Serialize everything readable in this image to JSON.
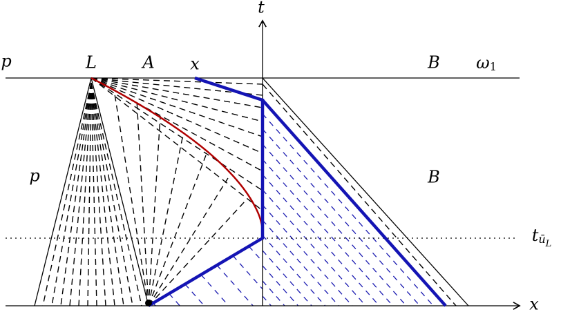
{
  "axes": {
    "t": "t",
    "x": "x"
  },
  "labels": {
    "p_top": "p",
    "L": "L",
    "A": "A",
    "x_top": "x",
    "B_top": "B",
    "omega": {
      "main": "ω",
      "sub": "1"
    },
    "p_mid": "p",
    "B_mid": "B"
  },
  "time_marker": {
    "main": "t",
    "sub": "ū",
    "subsub": "L"
  }
}
